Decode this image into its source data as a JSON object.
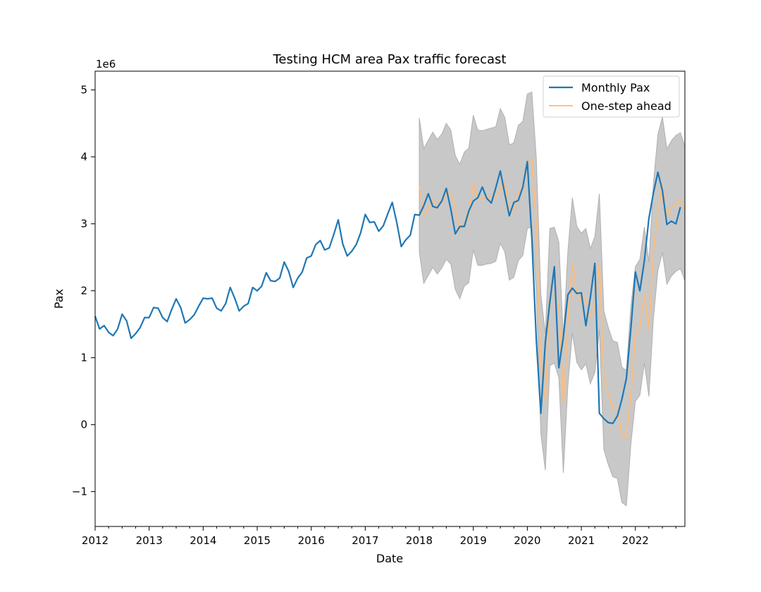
{
  "chart_data": {
    "type": "line",
    "title": "Testing HCM area Pax traffic forecast",
    "xlabel": "Date",
    "ylabel": "Pax",
    "y_scale_label": "1e6",
    "xlim": [
      "2012-01",
      "2022-12"
    ],
    "ylim": [
      -1.52,
      5.28
    ],
    "x_ticks": [
      "2012",
      "2013",
      "2014",
      "2015",
      "2016",
      "2017",
      "2018",
      "2019",
      "2020",
      "2021",
      "2022"
    ],
    "y_ticks": [
      "−1",
      "0",
      "1",
      "2",
      "3",
      "4",
      "5"
    ],
    "y_tick_values": [
      -1,
      0,
      1,
      2,
      3,
      4,
      5
    ],
    "legend_position": "top-right",
    "series": [
      {
        "name": "Monthly Pax",
        "color": "#1f77b4",
        "start": "2012-01",
        "values": [
          1.62,
          1.43,
          1.48,
          1.38,
          1.33,
          1.43,
          1.65,
          1.55,
          1.29,
          1.36,
          1.45,
          1.6,
          1.6,
          1.75,
          1.74,
          1.6,
          1.54,
          1.72,
          1.88,
          1.75,
          1.52,
          1.57,
          1.64,
          1.77,
          1.89,
          1.88,
          1.89,
          1.74,
          1.7,
          1.81,
          2.05,
          1.89,
          1.7,
          1.77,
          1.81,
          2.05,
          2.0,
          2.07,
          2.27,
          2.15,
          2.14,
          2.19,
          2.43,
          2.29,
          2.05,
          2.19,
          2.28,
          2.49,
          2.52,
          2.69,
          2.75,
          2.61,
          2.64,
          2.84,
          3.06,
          2.7,
          2.52,
          2.59,
          2.69,
          2.87,
          3.14,
          3.02,
          3.03,
          2.89,
          2.97,
          3.15,
          3.32,
          3.02,
          2.66,
          2.76,
          2.83,
          3.14,
          3.13,
          3.27,
          3.45,
          3.26,
          3.24,
          3.34,
          3.53,
          3.22,
          2.85,
          2.96,
          2.96,
          3.19,
          3.34,
          3.39,
          3.55,
          3.38,
          3.31,
          3.54,
          3.79,
          3.45,
          3.12,
          3.32,
          3.35,
          3.55,
          3.93,
          2.79,
          1.26,
          0.17,
          1.23,
          1.83,
          2.36,
          0.85,
          1.31,
          1.94,
          2.04,
          1.96,
          1.97,
          1.48,
          1.9,
          2.41,
          0.17,
          0.09,
          0.03,
          0.02,
          0.13,
          0.38,
          0.69,
          1.44,
          2.28,
          2.0,
          2.45,
          3.08,
          3.46,
          3.77,
          3.5,
          2.99,
          3.04,
          3.0,
          3.25
        ]
      },
      {
        "name": "One-step ahead",
        "color": "#ffbb78",
        "start": "2018-01",
        "values": [
          3.58,
          3.11,
          3.22,
          3.35,
          3.28,
          3.31,
          3.44,
          3.46,
          3.2,
          2.93,
          3.0,
          3.1,
          3.61,
          3.38,
          3.39,
          3.38,
          3.41,
          3.41,
          3.5,
          3.61,
          3.16,
          3.18,
          3.48,
          3.52,
          3.94,
          3.97,
          2.98,
          0.9,
          0.34,
          1.93,
          1.94,
          1.79,
          0.3,
          1.55,
          2.39,
          1.95,
          1.83,
          1.9,
          1.61,
          1.76,
          2.4,
          0.68,
          0.45,
          0.24,
          0.22,
          -0.15,
          -0.2,
          0.45,
          1.36,
          1.45,
          1.94,
          1.43,
          2.58,
          3.19,
          3.58,
          3.11,
          3.25,
          3.3,
          3.35,
          3.22
        ]
      }
    ],
    "confidence_band": {
      "color": "#c8c8c8",
      "start": "2018-01",
      "upper": [
        4.58,
        4.12,
        4.25,
        4.37,
        4.26,
        4.34,
        4.5,
        4.4,
        4.02,
        3.89,
        4.07,
        4.13,
        4.62,
        4.4,
        4.39,
        4.41,
        4.43,
        4.45,
        4.72,
        4.59,
        4.18,
        4.21,
        4.47,
        4.53,
        4.94,
        4.97,
        3.98,
        1.95,
        1.36,
        2.93,
        2.95,
        2.73,
        1.31,
        2.58,
        3.39,
        2.96,
        2.86,
        2.93,
        2.63,
        2.81,
        3.45,
        1.7,
        1.45,
        1.25,
        1.23,
        0.86,
        0.81,
        1.77,
        2.36,
        2.47,
        2.95,
        2.43,
        3.6,
        4.33,
        4.6,
        4.12,
        4.24,
        4.32,
        4.36,
        4.16
      ],
      "lower": [
        2.58,
        2.11,
        2.23,
        2.35,
        2.25,
        2.34,
        2.47,
        2.4,
        2.02,
        1.88,
        2.07,
        2.12,
        2.61,
        2.38,
        2.38,
        2.4,
        2.41,
        2.44,
        2.71,
        2.58,
        2.16,
        2.2,
        2.45,
        2.53,
        2.93,
        2.96,
        1.96,
        -0.13,
        -0.68,
        0.88,
        0.92,
        0.7,
        -0.72,
        0.58,
        1.37,
        0.93,
        0.82,
        0.91,
        0.61,
        0.78,
        1.42,
        -0.37,
        -0.6,
        -0.78,
        -0.8,
        -1.16,
        -1.21,
        -0.29,
        0.35,
        0.44,
        0.92,
        0.42,
        1.58,
        2.3,
        2.57,
        2.1,
        2.22,
        2.29,
        2.33,
        2.15
      ]
    }
  }
}
